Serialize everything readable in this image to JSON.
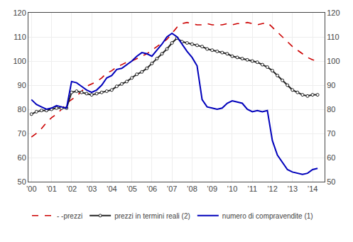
{
  "chart_data": {
    "type": "line",
    "x": [
      2000.0,
      2000.25,
      2000.5,
      2000.75,
      2001.0,
      2001.25,
      2001.5,
      2001.75,
      2002.0,
      2002.25,
      2002.5,
      2002.75,
      2003.0,
      2003.25,
      2003.5,
      2003.75,
      2004.0,
      2004.25,
      2004.5,
      2004.75,
      2005.0,
      2005.25,
      2005.5,
      2005.75,
      2006.0,
      2006.25,
      2006.5,
      2006.75,
      2007.0,
      2007.25,
      2007.5,
      2007.75,
      2008.0,
      2008.25,
      2008.5,
      2008.75,
      2009.0,
      2009.25,
      2009.5,
      2009.75,
      2010.0,
      2010.25,
      2010.5,
      2010.75,
      2011.0,
      2011.25,
      2011.5,
      2011.75,
      2012.0,
      2012.25,
      2012.5,
      2012.75,
      2013.0,
      2013.25,
      2013.5,
      2013.75,
      2014.0,
      2014.25
    ],
    "series": [
      {
        "name": "- -prezzi",
        "color": "#cc0000",
        "line_style": "dashed",
        "values": [
          68.5,
          70.0,
          72.0,
          74.5,
          76.5,
          78.0,
          80.0,
          82.5,
          84.0,
          85.5,
          87.5,
          89.5,
          90.5,
          91.5,
          93.0,
          95.0,
          96.0,
          97.5,
          98.5,
          99.5,
          100.0,
          101.0,
          102.0,
          103.0,
          104.5,
          106.0,
          107.5,
          109.0,
          111.5,
          114.0,
          115.5,
          116.0,
          115.5,
          115.0,
          115.0,
          115.5,
          115.0,
          115.0,
          115.0,
          115.5,
          115.0,
          115.5,
          115.5,
          116.0,
          115.5,
          115.0,
          115.5,
          116.0,
          114.0,
          112.0,
          110.0,
          108.0,
          106.0,
          104.5,
          103.0,
          101.5,
          100.5,
          100.0
        ]
      },
      {
        "name": "prezzi in termini reali (2)",
        "color": "#222222",
        "line_style": "solid",
        "marker": "circle",
        "values": [
          78.0,
          79.0,
          79.5,
          79.5,
          80.0,
          80.5,
          80.5,
          80.5,
          87.0,
          87.5,
          87.0,
          86.5,
          86.0,
          86.5,
          87.0,
          87.5,
          88.0,
          89.5,
          90.5,
          91.5,
          93.0,
          94.5,
          95.5,
          97.0,
          99.0,
          101.0,
          103.0,
          105.0,
          107.5,
          109.5,
          108.0,
          107.5,
          107.0,
          106.5,
          106.0,
          105.0,
          104.5,
          104.0,
          103.5,
          103.0,
          102.0,
          101.5,
          101.0,
          100.5,
          100.0,
          99.5,
          98.5,
          97.5,
          96.0,
          94.0,
          92.0,
          90.0,
          88.0,
          87.0,
          86.0,
          85.5,
          86.0,
          86.0
        ]
      },
      {
        "name": "numero di compravendite (1)",
        "color": "#0000bb",
        "line_style": "solid",
        "values": [
          84.0,
          82.0,
          81.0,
          80.0,
          80.5,
          81.5,
          81.0,
          80.5,
          91.5,
          91.0,
          89.5,
          88.0,
          87.0,
          88.0,
          90.0,
          93.0,
          94.0,
          96.5,
          97.0,
          98.5,
          100.0,
          102.0,
          103.5,
          103.0,
          102.0,
          104.5,
          107.0,
          110.0,
          111.5,
          110.0,
          107.0,
          104.0,
          101.5,
          98.0,
          84.0,
          81.0,
          80.5,
          80.0,
          80.5,
          82.5,
          83.5,
          83.0,
          82.5,
          80.0,
          79.0,
          79.5,
          79.0,
          79.5,
          67.0,
          61.0,
          58.0,
          55.0,
          54.0,
          53.5,
          53.0,
          53.5,
          55.0,
          55.5
        ]
      }
    ],
    "xlim": [
      1999.85,
      2014.6
    ],
    "xticks": [
      {
        "value": 2000,
        "label": "’00"
      },
      {
        "value": 2001,
        "label": "’01"
      },
      {
        "value": 2002,
        "label": "’02"
      },
      {
        "value": 2003,
        "label": "’03"
      },
      {
        "value": 2004,
        "label": "’04"
      },
      {
        "value": 2005,
        "label": "’05"
      },
      {
        "value": 2006,
        "label": "’06"
      },
      {
        "value": 2007,
        "label": "’07"
      },
      {
        "value": 2008,
        "label": "’08"
      },
      {
        "value": 2009,
        "label": "’09"
      },
      {
        "value": 2010,
        "label": "’10"
      },
      {
        "value": 2011,
        "label": "’11"
      },
      {
        "value": 2012,
        "label": "’12"
      },
      {
        "value": 2013,
        "label": "’13"
      },
      {
        "value": 2014,
        "label": "’14"
      }
    ],
    "ylim": [
      50,
      120
    ],
    "yticks": [
      50,
      60,
      70,
      80,
      90,
      100,
      110,
      120
    ],
    "y2lim": [
      50,
      120
    ],
    "y2ticks": [
      50,
      60,
      70,
      80,
      90,
      100,
      110,
      120
    ],
    "grid": true,
    "legend": "bottom"
  }
}
